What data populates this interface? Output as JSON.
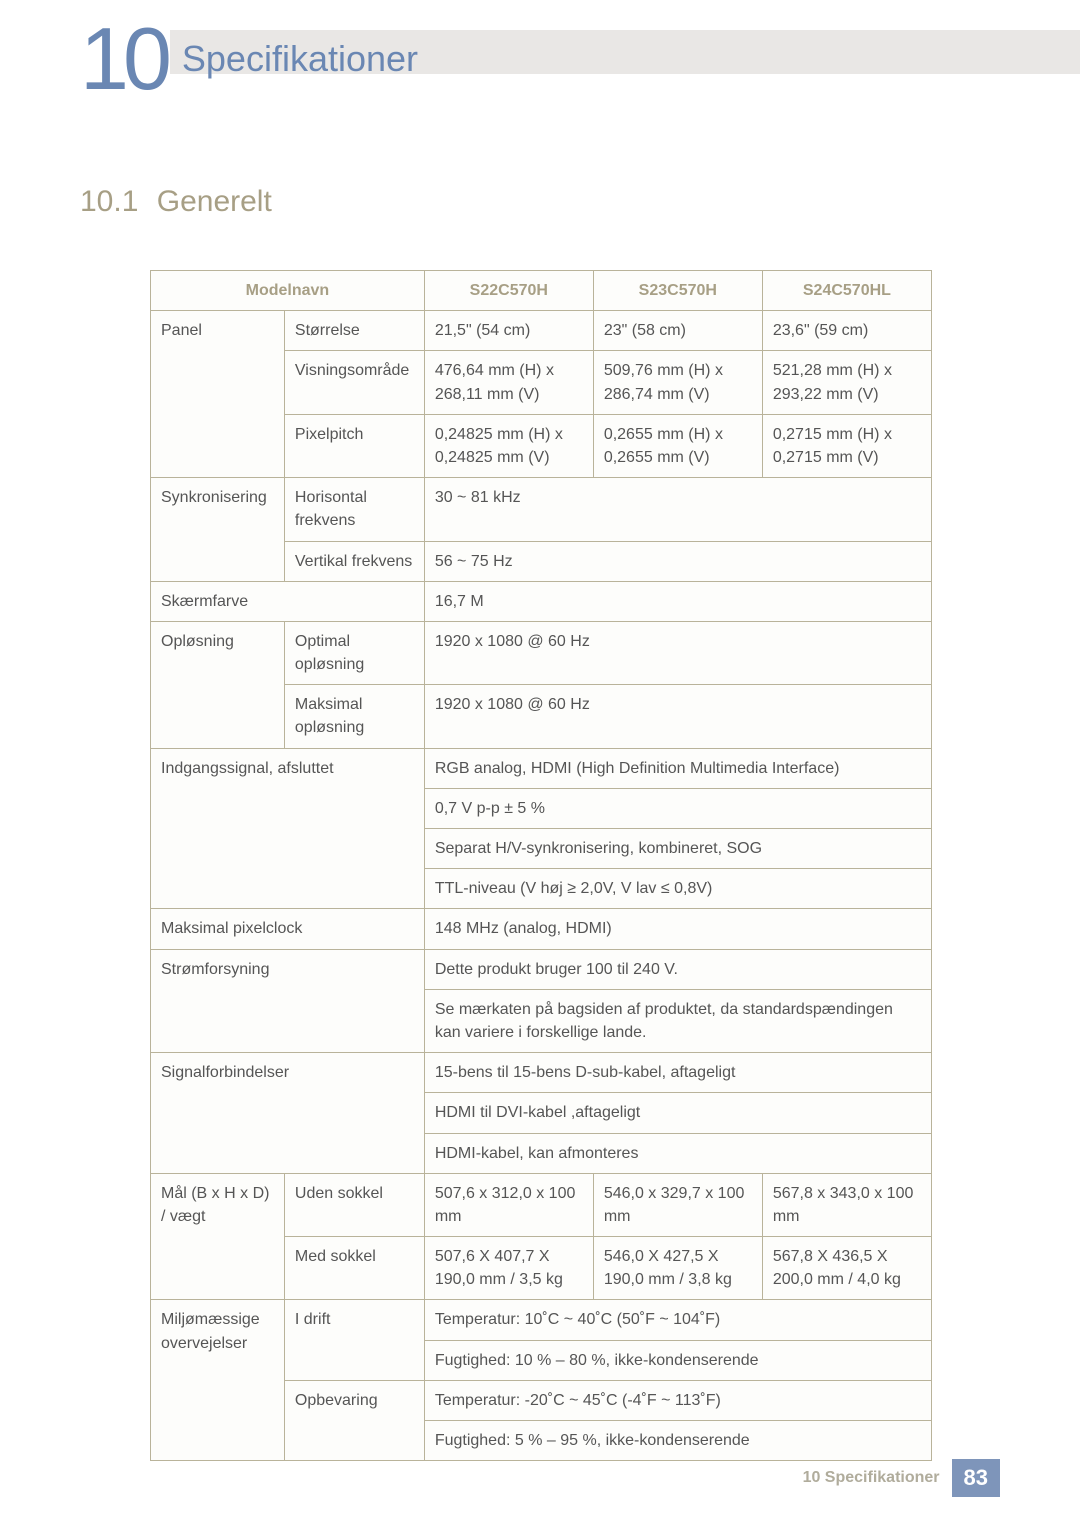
{
  "chapter": {
    "number": "10",
    "title": "Specifikationer"
  },
  "section": {
    "number": "10.1",
    "title": "Generelt"
  },
  "table": {
    "modelnavn_label": "Modelnavn",
    "models": {
      "m1": "S22C570H",
      "m2": "S23C570H",
      "m3": "S24C570HL"
    },
    "panel_label": "Panel",
    "size_label": "Størrelse",
    "size": {
      "m1": "21,5\" (54 cm)",
      "m2": "23\" (58 cm)",
      "m3": "23,6\" (59 cm)"
    },
    "display_label": "Visningsområde",
    "display": {
      "m1": "476,64 mm (H) x 268,11 mm (V)",
      "m2": "509,76 mm (H) x 286,74 mm (V)",
      "m3": "521,28 mm (H) x 293,22 mm (V)"
    },
    "pixel_label": "Pixelpitch",
    "pixel": {
      "m1": "0,24825 mm (H) x 0,24825 mm (V)",
      "m2": "0,2655 mm (H) x 0,2655 mm (V)",
      "m3": "0,2715 mm (H) x 0,2715 mm (V)"
    },
    "sync_label": "Synkronisering",
    "hfreq_label": "Horisontal frekvens",
    "hfreq": "30 ~ 81 kHz",
    "vfreq_label": "Vertikal frekvens",
    "vfreq": "56 ~ 75 Hz",
    "color_label": "Skærmfarve",
    "color": "16,7 M",
    "res_label": "Opløsning",
    "optres_label": "Optimal opløsning",
    "optres": "1920 x 1080 @ 60 Hz",
    "maxres_label": "Maksimal opløsning",
    "maxres": "1920 x 1080 @ 60 Hz",
    "input_label": "Indgangssignal, afsluttet",
    "input1": "RGB analog, HDMI (High Definition Multimedia Interface)",
    "input2": "0,7 V p-p ± 5 %",
    "input3": "Separat H/V-synkronisering, kombineret, SOG",
    "input4": "TTL-niveau (V høj ≥ 2,0V, V lav ≤ 0,8V)",
    "pixclock_label": "Maksimal pixelclock",
    "pixclock": "148 MHz (analog, HDMI)",
    "power_label": "Strømforsyning",
    "power1": "Dette produkt bruger 100 til 240 V.",
    "power2": "Se mærkaten på bagsiden af produktet, da standardspændingen kan variere i forskellige lande.",
    "signal_label": "Signalforbindelser",
    "signal1": "15-bens til 15-bens D-sub-kabel, aftageligt",
    "signal2": "HDMI til DVI-kabel ,aftageligt",
    "signal3": "HDMI-kabel, kan afmonteres",
    "dim_label": "Mål (B x H x D) / vægt",
    "nostand_label": "Uden sokkel",
    "nostand": {
      "m1": "507,6 x 312,0 x 100 mm",
      "m2": "546,0 x 329,7 x 100 mm",
      "m3": "567,8 x 343,0 x 100 mm"
    },
    "stand_label": "Med sokkel",
    "stand": {
      "m1": "507,6 X 407,7 X 190,0 mm / 3,5 kg",
      "m2": "546,0 X 427,5 X 190,0 mm / 3,8 kg",
      "m3": "567,8 X 436,5 X 200,0 mm / 4,0 kg"
    },
    "env_label": "Miljømæssige overvejelser",
    "oper_label": "I drift",
    "oper1": "Temperatur: 10˚C ~ 40˚C (50˚F ~ 104˚F)",
    "oper2": "Fugtighed: 10 % – 80 %, ikke-kondenserende",
    "stor_label": "Opbevaring",
    "stor1": "Temperatur: -20˚C ~ 45˚C (-4˚F ~ 113˚F)",
    "stor2": "Fugtighed: 5 % – 95 %, ikke-kondenserende"
  },
  "footer": {
    "label": "10 Specifikationer",
    "page": "83"
  }
}
